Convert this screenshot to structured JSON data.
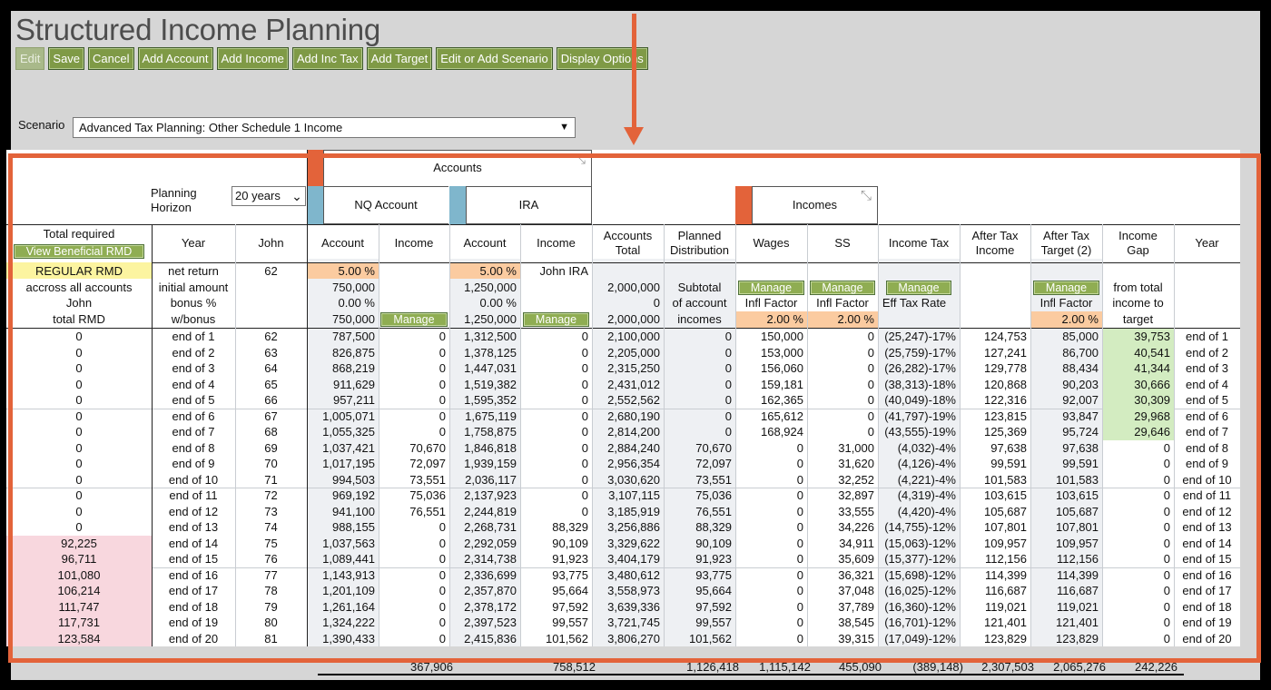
{
  "page": {
    "title": "Structured Income Planning"
  },
  "toolbar": [
    "Edit",
    "Save",
    "Cancel",
    "Add Account",
    "Add Income",
    "Add Inc Tax",
    "Add Target",
    "Edit or Add Scenario",
    "Display Options"
  ],
  "scenario": {
    "label": "Scenario",
    "value": "Advanced Tax Planning: Other Schedule 1 Income"
  },
  "planning": {
    "label1": "Planning",
    "label2": "Horizon",
    "value": "20 years"
  },
  "groups": {
    "accounts": "Accounts",
    "incomes": "Incomes",
    "nq": "NQ Account",
    "ira": "IRA"
  },
  "headers": {
    "total_required": "Total required",
    "view_rmd": "View Beneficial RMD",
    "year": "Year",
    "john": "John",
    "account": "Account",
    "income": "Income",
    "accounts_total": [
      "Accounts",
      "Total"
    ],
    "planned": [
      "Planned",
      "Distribution"
    ],
    "wages": "Wages",
    "ss": "SS",
    "income_tax": "Income Tax",
    "after_tax_income": [
      "After Tax",
      "Income"
    ],
    "after_tax_target": [
      "After Tax",
      "Target (2)"
    ],
    "income_gap": [
      "Income",
      "Gap"
    ]
  },
  "sub": {
    "rmd": [
      "REGULAR RMD",
      "accross all accounts",
      "John",
      "total RMD"
    ],
    "year": [
      "net return",
      "initial amount",
      "bonus %",
      "w/bonus"
    ],
    "john": "62",
    "nq_acct": [
      "5.00  %",
      "750,000",
      "0.00  %",
      "750,000"
    ],
    "ira_acct": [
      "5.00  %",
      "1,250,000",
      "0.00  %",
      "1,250,000"
    ],
    "ira_income": "John IRA",
    "acct_total": [
      "2,000,000",
      "0",
      "2,000,000"
    ],
    "planned": [
      "Subtotal",
      "of account",
      "incomes"
    ],
    "manage": "Manage",
    "infl": "Infl Factor",
    "eff": "Eff Tax Rate",
    "wages_rate": "2.00  %",
    "ss_rate": "2.00  %",
    "target_rate": "2.00  %",
    "gap": [
      "from total",
      "income to",
      "target"
    ]
  },
  "rows": [
    [
      "0",
      "end of 1",
      "62",
      "787,500",
      "0",
      "1,312,500",
      "0",
      "2,100,000",
      "0",
      "150,000",
      "0",
      "(25,247)-17%",
      "124,753",
      "85,000",
      "39,753",
      "end of 1"
    ],
    [
      "0",
      "end of 2",
      "63",
      "826,875",
      "0",
      "1,378,125",
      "0",
      "2,205,000",
      "0",
      "153,000",
      "0",
      "(25,759)-17%",
      "127,241",
      "86,700",
      "40,541",
      "end of 2"
    ],
    [
      "0",
      "end of 3",
      "64",
      "868,219",
      "0",
      "1,447,031",
      "0",
      "2,315,250",
      "0",
      "156,060",
      "0",
      "(26,282)-17%",
      "129,778",
      "88,434",
      "41,344",
      "end of 3"
    ],
    [
      "0",
      "end of 4",
      "65",
      "911,629",
      "0",
      "1,519,382",
      "0",
      "2,431,012",
      "0",
      "159,181",
      "0",
      "(38,313)-18%",
      "120,868",
      "90,203",
      "30,666",
      "end of 4"
    ],
    [
      "0",
      "end of 5",
      "66",
      "957,211",
      "0",
      "1,595,352",
      "0",
      "2,552,562",
      "0",
      "162,365",
      "0",
      "(40,049)-18%",
      "122,316",
      "92,007",
      "30,309",
      "end of 5"
    ],
    [
      "0",
      "end of 6",
      "67",
      "1,005,071",
      "0",
      "1,675,119",
      "0",
      "2,680,190",
      "0",
      "165,612",
      "0",
      "(41,797)-19%",
      "123,815",
      "93,847",
      "29,968",
      "end of 6"
    ],
    [
      "0",
      "end of 7",
      "68",
      "1,055,325",
      "0",
      "1,758,875",
      "0",
      "2,814,200",
      "0",
      "168,924",
      "0",
      "(43,555)-19%",
      "125,369",
      "95,724",
      "29,646",
      "end of 7"
    ],
    [
      "0",
      "end of 8",
      "69",
      "1,037,421",
      "70,670",
      "1,846,818",
      "0",
      "2,884,240",
      "70,670",
      "0",
      "31,000",
      "(4,032)-4%",
      "97,638",
      "97,638",
      "0",
      "end of 8"
    ],
    [
      "0",
      "end of 9",
      "70",
      "1,017,195",
      "72,097",
      "1,939,159",
      "0",
      "2,956,354",
      "72,097",
      "0",
      "31,620",
      "(4,126)-4%",
      "99,591",
      "99,591",
      "0",
      "end of 9"
    ],
    [
      "0",
      "end of 10",
      "71",
      "994,503",
      "73,551",
      "2,036,117",
      "0",
      "3,030,620",
      "73,551",
      "0",
      "32,252",
      "(4,221)-4%",
      "101,583",
      "101,583",
      "0",
      "end of 10"
    ],
    [
      "0",
      "end of 11",
      "72",
      "969,192",
      "75,036",
      "2,137,923",
      "0",
      "3,107,115",
      "75,036",
      "0",
      "32,897",
      "(4,319)-4%",
      "103,615",
      "103,615",
      "0",
      "end of 11"
    ],
    [
      "0",
      "end of 12",
      "73",
      "941,100",
      "76,551",
      "2,244,819",
      "0",
      "3,185,919",
      "76,551",
      "0",
      "33,555",
      "(4,420)-4%",
      "105,687",
      "105,687",
      "0",
      "end of 12"
    ],
    [
      "0",
      "end of 13",
      "74",
      "988,155",
      "0",
      "2,268,731",
      "88,329",
      "3,256,886",
      "88,329",
      "0",
      "34,226",
      "(14,755)-12%",
      "107,801",
      "107,801",
      "0",
      "end of 13"
    ],
    [
      "92,225",
      "end of 14",
      "75",
      "1,037,563",
      "0",
      "2,292,059",
      "90,109",
      "3,329,622",
      "90,109",
      "0",
      "34,911",
      "(15,063)-12%",
      "109,957",
      "109,957",
      "0",
      "end of 14"
    ],
    [
      "96,711",
      "end of 15",
      "76",
      "1,089,441",
      "0",
      "2,314,738",
      "91,923",
      "3,404,179",
      "91,923",
      "0",
      "35,609",
      "(15,377)-12%",
      "112,156",
      "112,156",
      "0",
      "end of 15"
    ],
    [
      "101,080",
      "end of 16",
      "77",
      "1,143,913",
      "0",
      "2,336,699",
      "93,775",
      "3,480,612",
      "93,775",
      "0",
      "36,321",
      "(15,698)-12%",
      "114,399",
      "114,399",
      "0",
      "end of 16"
    ],
    [
      "106,214",
      "end of 17",
      "78",
      "1,201,109",
      "0",
      "2,357,870",
      "95,664",
      "3,558,973",
      "95,664",
      "0",
      "37,048",
      "(16,025)-12%",
      "116,687",
      "116,687",
      "0",
      "end of 17"
    ],
    [
      "111,747",
      "end of 18",
      "79",
      "1,261,164",
      "0",
      "2,378,172",
      "97,592",
      "3,639,336",
      "97,592",
      "0",
      "37,789",
      "(16,360)-12%",
      "119,021",
      "119,021",
      "0",
      "end of 18"
    ],
    [
      "117,731",
      "end of 19",
      "80",
      "1,324,222",
      "0",
      "2,397,523",
      "99,557",
      "3,721,745",
      "99,557",
      "0",
      "38,545",
      "(16,701)-12%",
      "121,401",
      "121,401",
      "0",
      "end of 19"
    ],
    [
      "123,584",
      "end of 20",
      "81",
      "1,390,433",
      "0",
      "2,415,836",
      "101,562",
      "3,806,270",
      "101,562",
      "0",
      "39,315",
      "(17,049)-12%",
      "123,829",
      "123,829",
      "0",
      "end of 20"
    ]
  ],
  "totals": [
    "367,906",
    "758,512",
    "1,126,418",
    "1,115,142",
    "455,090",
    "(389,148)",
    "2,307,503",
    "2,065,276",
    "242,226"
  ],
  "colors": {
    "accent_orange": "#e3633a",
    "btn_green": "#7f9a46",
    "cell_orange": "#fbcba0",
    "cell_green": "#d3ecc1",
    "cell_pink": "#f8d7de",
    "cell_yellow": "#fcf4a0",
    "col_shade": "#eef0f3"
  }
}
